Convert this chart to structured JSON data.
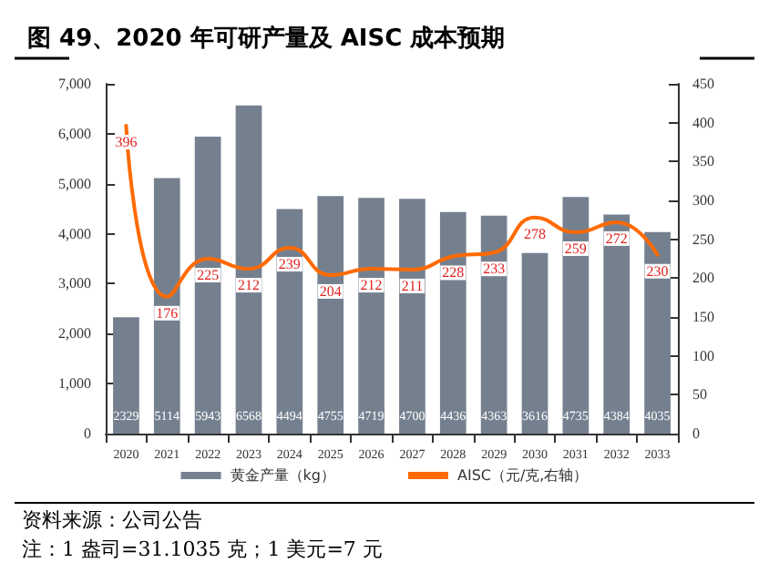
{
  "chart_data": {
    "type": "bar",
    "title": "图 49、2020 年可研产量及 AISC 成本预期",
    "categories": [
      "2020",
      "2021",
      "2022",
      "2023",
      "2024",
      "2025",
      "2026",
      "2027",
      "2028",
      "2029",
      "2030",
      "2031",
      "2032",
      "2033"
    ],
    "series": [
      {
        "name": "黄金产量（kg）",
        "type": "bar",
        "color": "#75808f",
        "values": [
          2329,
          5114,
          5943,
          6568,
          4494,
          4755,
          4719,
          4700,
          4436,
          4363,
          3616,
          4735,
          4384,
          4035
        ]
      },
      {
        "name": "AISC（元/克,右轴）",
        "type": "line",
        "axis": "y2",
        "color": "#ff6a00",
        "values": [
          396,
          176,
          225,
          212,
          239,
          204,
          212,
          211,
          228,
          233,
          278,
          259,
          272,
          230
        ]
      }
    ],
    "ylim": [
      0,
      7000
    ],
    "yticks": [
      0,
      {
        "value": 1000,
        "label": "1,000"
      },
      {
        "value": 2000,
        "label": "2,000"
      },
      {
        "value": 3000,
        "label": "3,000"
      },
      {
        "value": 4000,
        "label": "4,000"
      },
      {
        "value": 5000,
        "label": "5,000"
      },
      {
        "value": 6000,
        "label": "6,000"
      },
      {
        "value": 7000,
        "label": "7,000"
      }
    ],
    "y2lim": [
      0,
      450
    ],
    "y2ticks": [
      0,
      50,
      100,
      150,
      200,
      250,
      300,
      350,
      400,
      450
    ],
    "data_labels": true,
    "grid": false,
    "legend": "bottom",
    "marker": "none",
    "line_style": "solid",
    "annotations": [
      "资料来源：公司公告",
      "注：1 盎司=31.1035 克；1 美元=7 元"
    ]
  }
}
